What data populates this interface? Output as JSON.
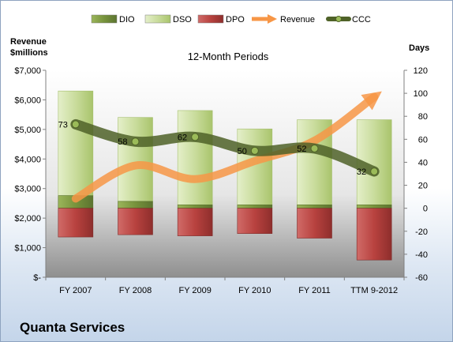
{
  "company": "Quanta Services",
  "chart_data": {
    "type": "bar",
    "title": "12-Month Periods",
    "categories": [
      "FY 2007",
      "FY 2008",
      "FY 2009",
      "FY 2010",
      "FY 2011",
      "TTM 9-2012"
    ],
    "left_axis": {
      "label_line1": "Revenue",
      "label_line2": "$millions",
      "range": [
        0,
        7000
      ],
      "ticks": [
        0,
        1000,
        2000,
        3000,
        4000,
        5000,
        6000,
        7000
      ],
      "tick_labels": [
        "$-",
        "$1,000",
        "$2,000",
        "$3,000",
        "$4,000",
        "$5,000",
        "$6,000",
        "$7,000"
      ]
    },
    "right_axis": {
      "label": "Days",
      "range": [
        -60,
        120
      ],
      "ticks": [
        -60,
        -40,
        -20,
        0,
        20,
        40,
        60,
        80,
        100,
        120
      ],
      "tick_labels": [
        "-60",
        "-40",
        "-20",
        "0",
        "20",
        "40",
        "60",
        "80",
        "100",
        "120"
      ]
    },
    "legend": {
      "position": "top",
      "items": [
        {
          "name": "DIO",
          "kind": "bar",
          "color": "#77933c"
        },
        {
          "name": "DSO",
          "kind": "bar",
          "color": "#c3d69b"
        },
        {
          "name": "DPO",
          "kind": "bar",
          "color": "#c0504d"
        },
        {
          "name": "Revenue",
          "kind": "arrow",
          "color": "#f79646"
        },
        {
          "name": "CCC",
          "kind": "line",
          "color": "#4f6228"
        }
      ]
    },
    "series": [
      {
        "name": "DIO",
        "axis": "right",
        "values": [
          11,
          6,
          3,
          3,
          3,
          3
        ]
      },
      {
        "name": "DSO",
        "axis": "right",
        "values": [
          91,
          73,
          82,
          66,
          74,
          74
        ]
      },
      {
        "name": "DPO",
        "axis": "right",
        "values": [
          -25,
          -23,
          -24,
          -22,
          -26,
          -45
        ]
      },
      {
        "name": "Revenue",
        "axis": "left",
        "values": [
          2660,
          3780,
          3320,
          3930,
          4620,
          6100
        ]
      },
      {
        "name": "CCC",
        "axis": "right",
        "values": [
          73,
          58,
          62,
          50,
          52,
          32
        ],
        "data_labels": [
          "73",
          "58",
          "62",
          "50",
          "52",
          "32"
        ]
      }
    ],
    "grid": false
  }
}
